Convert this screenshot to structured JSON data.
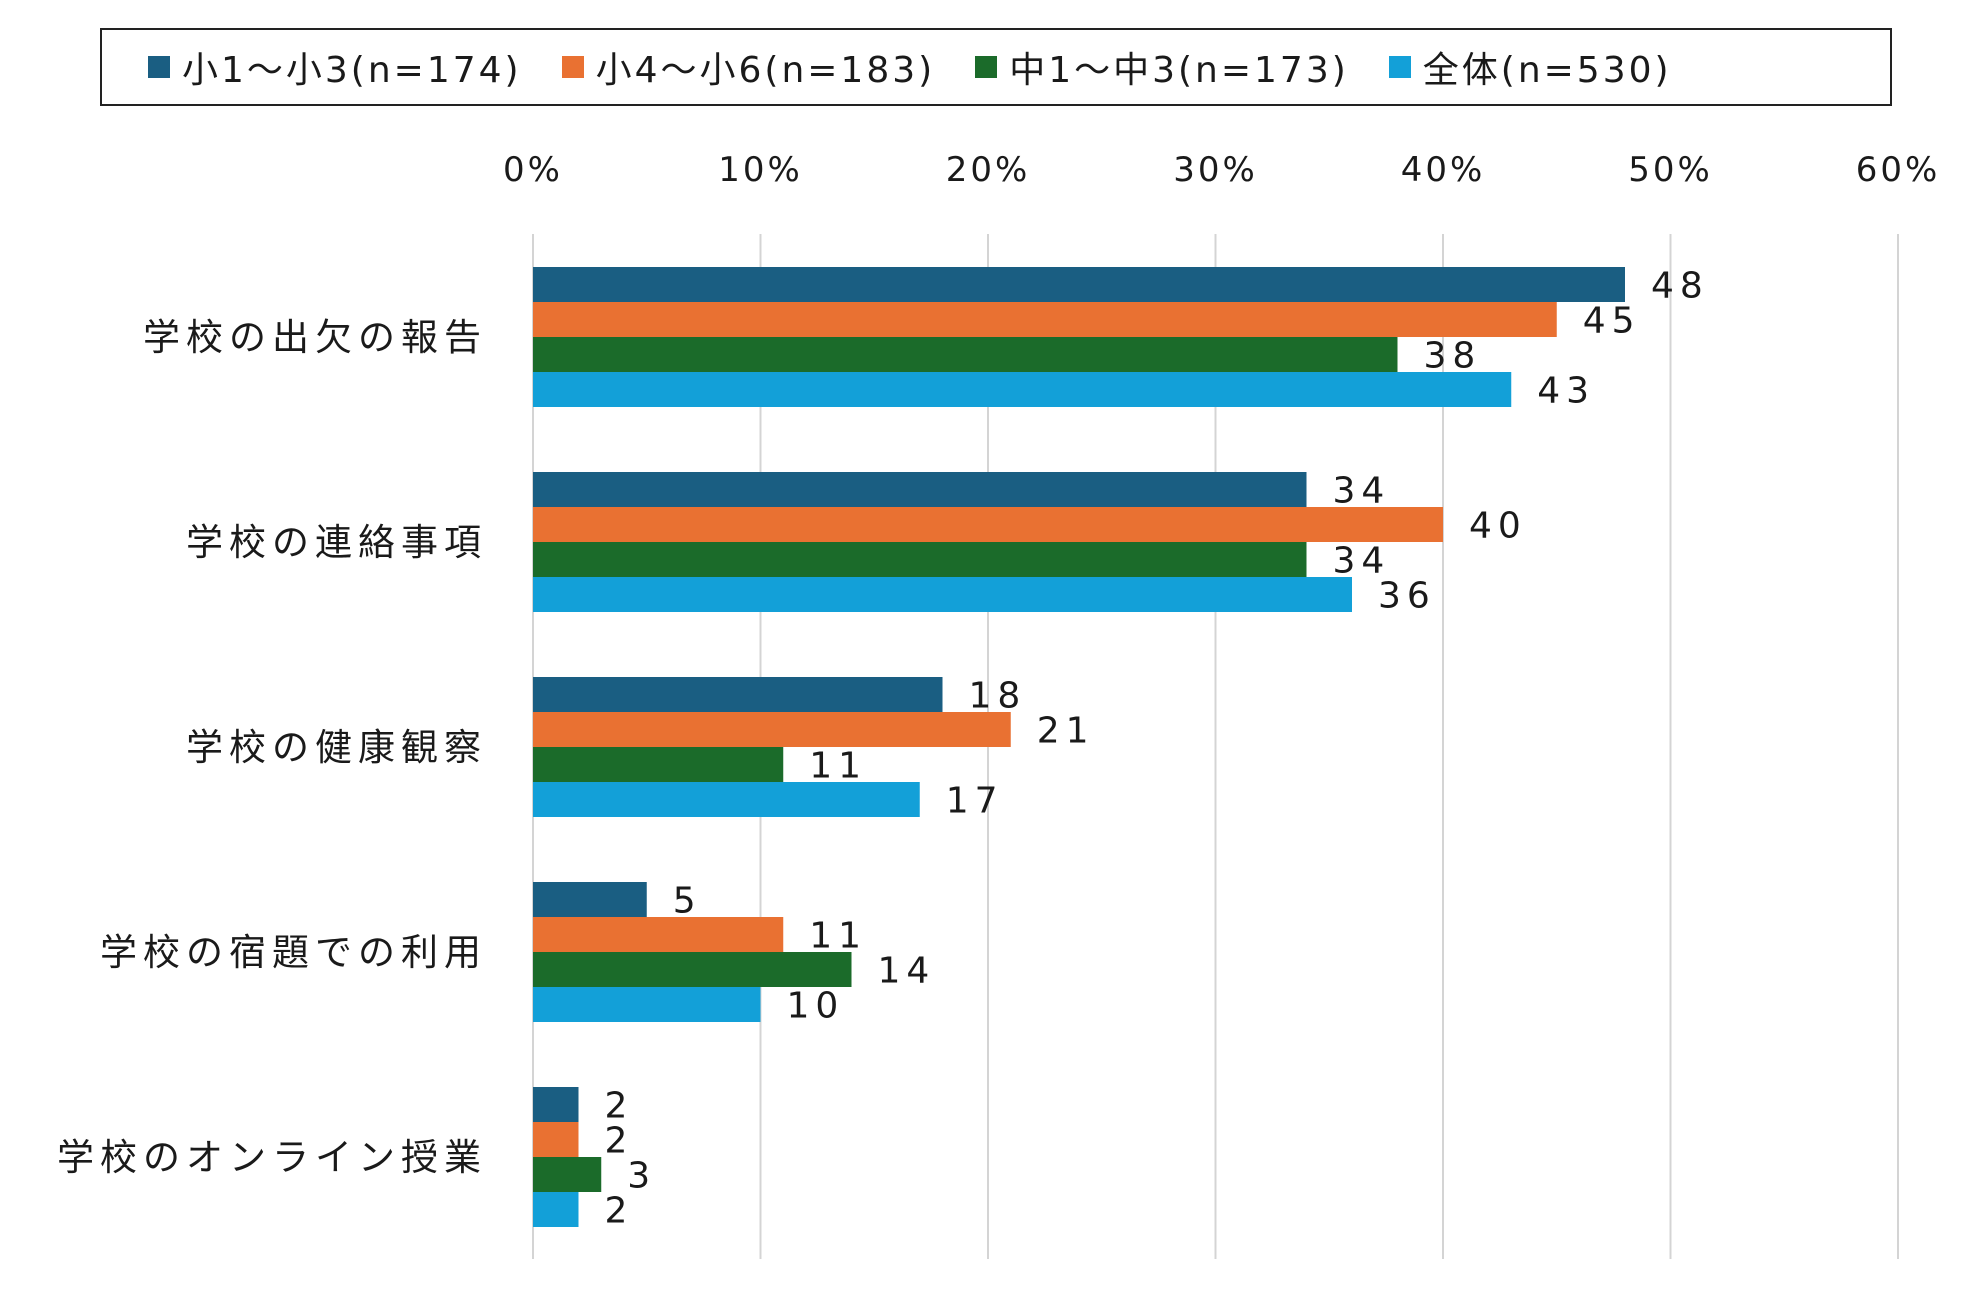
{
  "chart_data": {
    "type": "bar",
    "orientation": "horizontal",
    "categories": [
      "学校の出欠の報告",
      "学校の連絡事項",
      "学校の健康観察",
      "学校の宿題での利用",
      "学校のオンライン授業"
    ],
    "series": [
      {
        "name": "小1〜小3(n=174)",
        "color": "#1a5e82",
        "values": [
          48,
          34,
          18,
          5,
          2
        ]
      },
      {
        "name": "小4〜小6(n=183)",
        "color": "#e97132",
        "values": [
          45,
          40,
          21,
          11,
          2
        ]
      },
      {
        "name": "中1〜中3(n=173)",
        "color": "#1b6b2a",
        "values": [
          38,
          34,
          11,
          14,
          3
        ]
      },
      {
        "name": "全体(n=530)",
        "color": "#13a0d8",
        "values": [
          43,
          36,
          17,
          10,
          2
        ]
      }
    ],
    "data_labels": [
      [
        "48",
        "34",
        "18",
        "5",
        "2"
      ],
      [
        "45",
        "40",
        "21",
        "11",
        "2"
      ],
      [
        "38",
        "34",
        "11",
        "14",
        "3"
      ],
      [
        "43",
        "36",
        "17",
        "10",
        "2"
      ]
    ],
    "xlim": [
      0,
      60
    ],
    "xticks": [
      "0%",
      "10%",
      "20%",
      "30%",
      "40%",
      "50%",
      "60%"
    ],
    "grid": "vertical",
    "legend_position": "top"
  }
}
